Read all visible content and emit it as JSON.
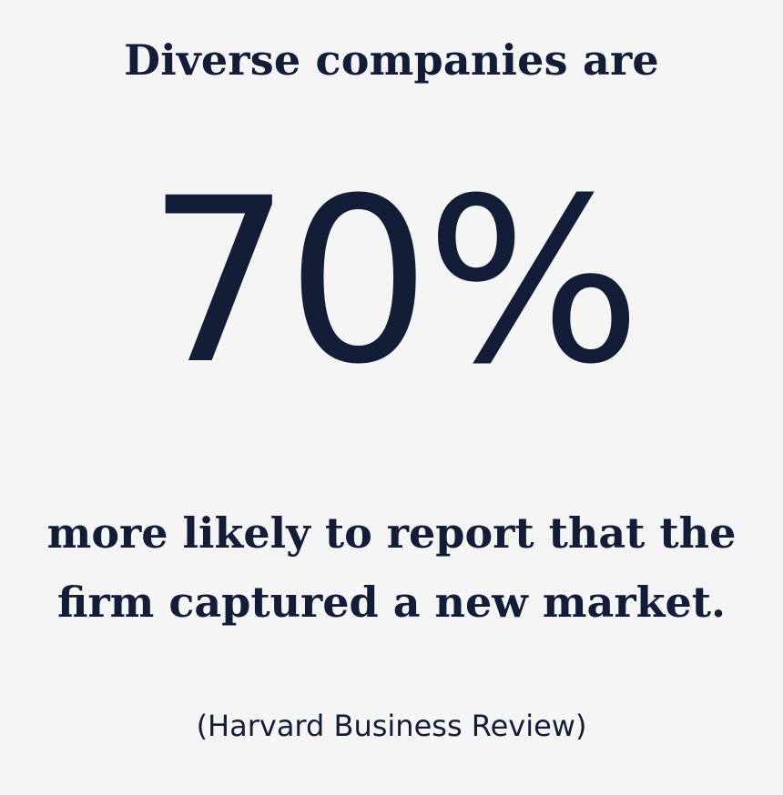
{
  "headline": "Diverse companies are",
  "stat": "70%",
  "body": {
    "line1": "more likely to report that the",
    "line2": "firm captured a new market."
  },
  "source": "(Harvard Business Review)",
  "colors": {
    "text": "#141d38",
    "background": "#f5f5f5"
  }
}
